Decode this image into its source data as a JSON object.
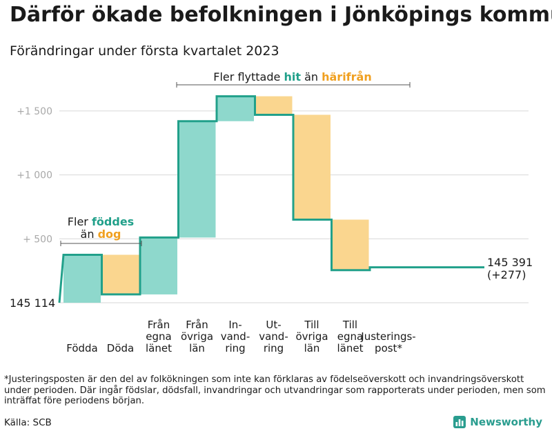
{
  "title": "Därför ökade befolkningen i Jönköpings kommun",
  "subtitle": "Förändringar under första kvartalet 2023",
  "chart_data": {
    "type": "waterfall",
    "start_label": "145 114",
    "end_label_1": "145 391",
    "end_label_2": "(+277)",
    "ylim": [
      0,
      1700
    ],
    "yticks": [
      {
        "value": 500,
        "label": "+ 500"
      },
      {
        "value": 1000,
        "label": "+1 000"
      },
      {
        "value": 1500,
        "label": "+1 500"
      }
    ],
    "steps": [
      {
        "label": [
          "Födda"
        ],
        "start": 0,
        "end": 375,
        "kind": "in"
      },
      {
        "label": [
          "Döda"
        ],
        "start": 375,
        "end": 65,
        "kind": "out"
      },
      {
        "label": [
          "Från",
          "egna",
          "länet"
        ],
        "start": 65,
        "end": 510,
        "kind": "in"
      },
      {
        "label": [
          "Från",
          "övriga",
          "län"
        ],
        "start": 510,
        "end": 1420,
        "kind": "in"
      },
      {
        "label": [
          "In-",
          "vand-",
          "ring"
        ],
        "start": 1420,
        "end": 1615,
        "kind": "in"
      },
      {
        "label": [
          "Ut-",
          "vand-",
          "ring"
        ],
        "start": 1615,
        "end": 1470,
        "kind": "out"
      },
      {
        "label": [
          "Till",
          "övriga",
          "län"
        ],
        "start": 1470,
        "end": 650,
        "kind": "out"
      },
      {
        "label": [
          "Till",
          "egna",
          "länet"
        ],
        "start": 650,
        "end": 255,
        "kind": "out"
      },
      {
        "label": [
          "Justerings-",
          "post*"
        ],
        "start": 255,
        "end": 277,
        "kind": "adj"
      }
    ],
    "annotation_birth": {
      "line1": "Fler",
      "hl1": "föddes",
      "line2": "än",
      "hl2": "dog"
    },
    "annotation_migration": {
      "prefix": "Fler flyttade",
      "hl1": "hit",
      "mid": "än",
      "hl2": "härifrån"
    },
    "colors": {
      "in": "#8ed8cc",
      "out": "#fad68f",
      "line": "#21a08a",
      "in_text": "#21a08a",
      "out_text": "#f0a020",
      "grid": "#d7d7d7",
      "axis": "#555555"
    }
  },
  "footnote": "*Justeringsposten är den del av folkökningen som inte kan förklaras av födelseöverskott och invandringsöverskott under perioden. Där ingår födslar, dödsfall, invandringar och utvandringar som rapporterats under perioden, men som inträffat före periodens början.",
  "source": "Källa: SCB",
  "logo": {
    "name": "Newsworthy",
    "color": "#2a9d8f"
  }
}
